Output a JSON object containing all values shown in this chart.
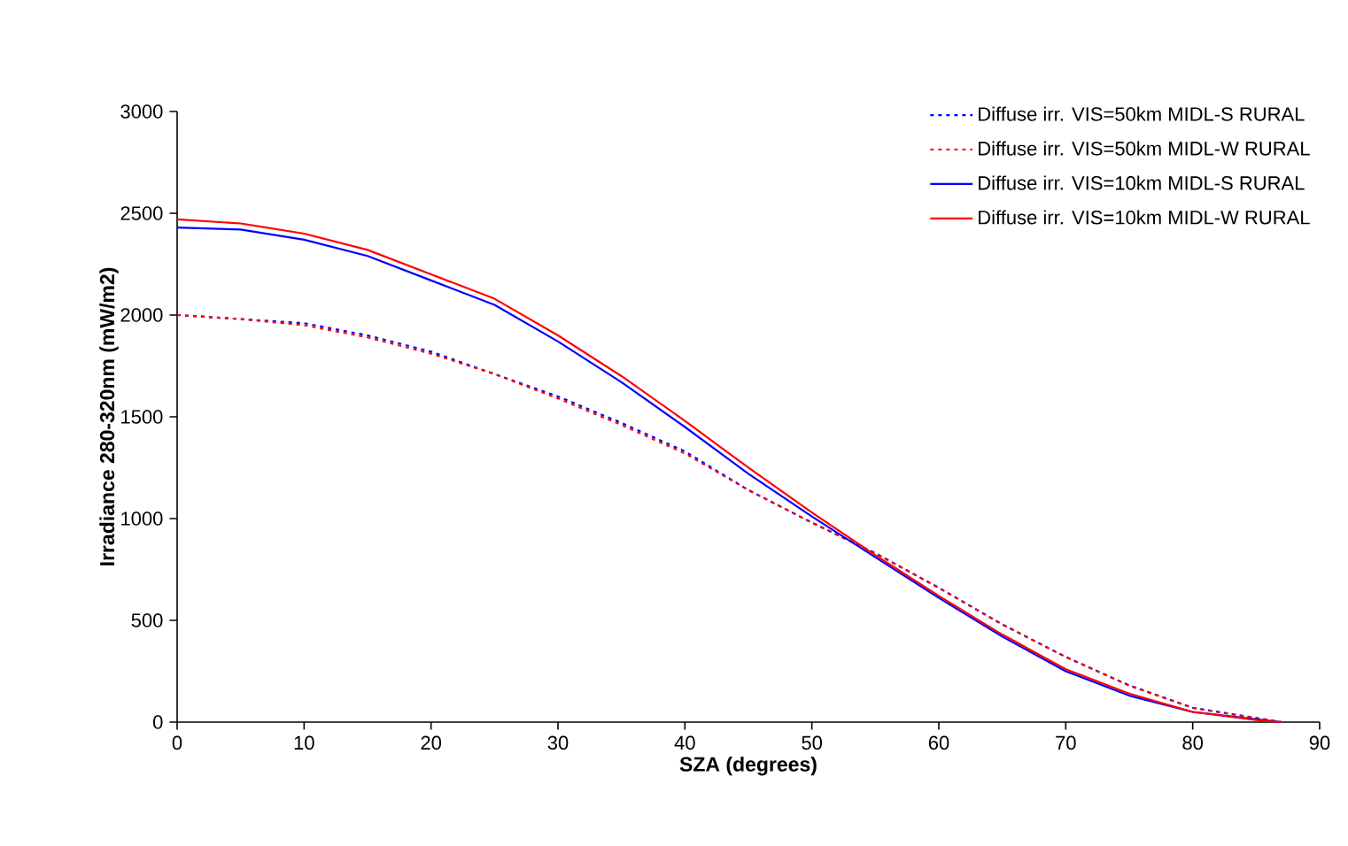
{
  "chart_data": {
    "type": "line",
    "xlabel": "SZA (degrees)",
    "ylabel": "Irradiance 280-320nm (mW/m2)",
    "xlim": [
      0,
      90
    ],
    "ylim": [
      0,
      3000
    ],
    "xticks": [
      0,
      10,
      20,
      30,
      40,
      50,
      60,
      70,
      80,
      90
    ],
    "yticks": [
      0,
      500,
      1000,
      1500,
      2000,
      2500,
      3000
    ],
    "grid": false,
    "legend": "top right",
    "marker": "none",
    "x": [
      0,
      5,
      10,
      15,
      20,
      25,
      30,
      35,
      40,
      45,
      50,
      55,
      60,
      65,
      70,
      75,
      80,
      85,
      87
    ],
    "series": [
      {
        "name": "Diffuse irr. VIS=50km MIDL-S RURAL",
        "color": "#0000ff",
        "line_style": "dotted",
        "values": [
          2000,
          1980,
          1960,
          1900,
          1820,
          1710,
          1600,
          1470,
          1330,
          1140,
          980,
          830,
          660,
          480,
          320,
          180,
          70,
          20,
          0
        ]
      },
      {
        "name": "Diffuse irr. VIS=50km MIDL-W RURAL",
        "color": "#ff0000",
        "line_style": "dotted",
        "values": [
          2000,
          1980,
          1950,
          1890,
          1810,
          1710,
          1590,
          1460,
          1320,
          1140,
          980,
          830,
          660,
          480,
          320,
          180,
          70,
          20,
          0
        ]
      },
      {
        "name": "Diffuse irr. VIS=10km MIDL-S RURAL",
        "color": "#0000ff",
        "line_style": "solid",
        "values": [
          2430,
          2420,
          2370,
          2290,
          2170,
          2050,
          1870,
          1670,
          1450,
          1220,
          1010,
          810,
          610,
          420,
          250,
          130,
          50,
          null,
          0
        ]
      },
      {
        "name": "Diffuse irr. VIS=10km MIDL-W RURAL",
        "color": "#ff0000",
        "line_style": "solid",
        "values": [
          2470,
          2450,
          2400,
          2320,
          2200,
          2080,
          1900,
          1700,
          1480,
          1250,
          1030,
          820,
          620,
          430,
          260,
          140,
          50,
          10,
          0
        ]
      }
    ]
  }
}
